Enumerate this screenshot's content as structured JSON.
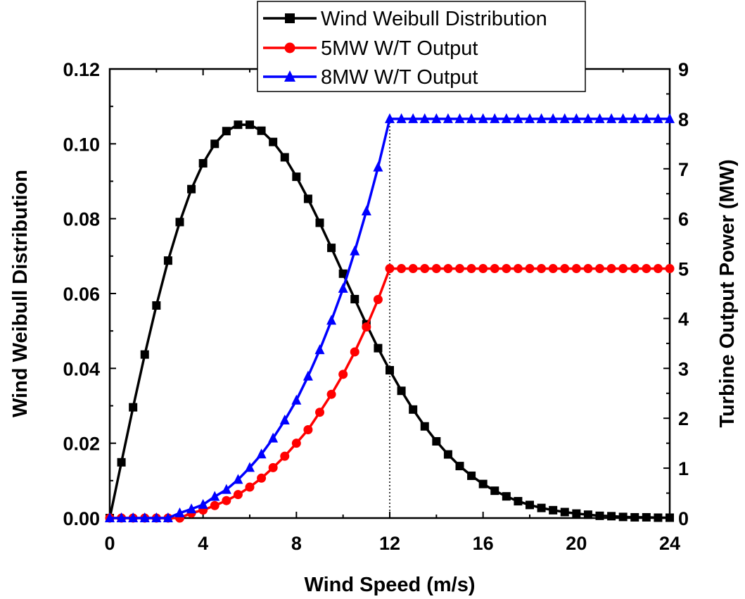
{
  "chart_data": {
    "type": "line",
    "xlabel": "Wind Speed (m/s)",
    "ylabel_left": "Wind Weibull Distribution",
    "ylabel_right": "Turbine Output Power (MW)",
    "xlim": [
      0,
      24
    ],
    "ylim_left": [
      0,
      0.12
    ],
    "ylim_right": [
      0,
      9
    ],
    "x_ticks": [
      "0",
      "4",
      "8",
      "12",
      "16",
      "20",
      "24"
    ],
    "y_left_ticks": [
      "0.00",
      "0.02",
      "0.04",
      "0.06",
      "0.08",
      "0.10",
      "0.12"
    ],
    "y_right_ticks": [
      "0",
      "1",
      "2",
      "3",
      "4",
      "5",
      "6",
      "7",
      "8",
      "9"
    ],
    "rated_speed_line": 12,
    "legend_position": "top-center",
    "x": [
      0,
      0.5,
      1,
      1.5,
      2,
      2.5,
      3,
      3.5,
      4,
      4.5,
      5,
      5.5,
      6,
      6.5,
      7,
      7.5,
      8,
      8.5,
      9,
      9.5,
      10,
      10.5,
      11,
      11.5,
      12,
      12.5,
      13,
      13.5,
      14,
      14.5,
      15,
      15.5,
      16,
      16.5,
      17,
      17.5,
      18,
      18.5,
      19,
      19.5,
      20,
      20.5,
      21,
      21.5,
      22,
      22.5,
      23,
      23.5,
      24
    ],
    "series": [
      {
        "name": "Wind Weibull Distribution",
        "axis": "left",
        "color": "#000000",
        "marker": "square",
        "values": [
          0,
          0.0149,
          0.0296,
          0.0437,
          0.0568,
          0.0688,
          0.0791,
          0.0879,
          0.0948,
          0.1,
          0.1034,
          0.1051,
          0.1051,
          0.1035,
          0.1005,
          0.0964,
          0.0912,
          0.0853,
          0.0789,
          0.0722,
          0.0653,
          0.0585,
          0.0518,
          0.0454,
          0.0395,
          0.034,
          0.029,
          0.0245,
          0.0205,
          0.017,
          0.0139,
          0.0113,
          0.0091,
          0.0073,
          0.0058,
          0.0045,
          0.0035,
          0.0027,
          0.0021,
          0.0016,
          0.0012,
          0.0009,
          0.0006,
          0.0005,
          0.0003,
          0.0002,
          0.0002,
          0.0001,
          0.0001
        ]
      },
      {
        "name": "5MW W/T Output",
        "axis": "right",
        "color": "#ff0000",
        "marker": "circle",
        "values": [
          0,
          0,
          0,
          0,
          0,
          0,
          0,
          0.1,
          0.16,
          0.25,
          0.35,
          0.47,
          0.62,
          0.8,
          1.01,
          1.24,
          1.5,
          1.77,
          2.12,
          2.48,
          2.88,
          3.33,
          3.83,
          4.38,
          5,
          5,
          5,
          5,
          5,
          5,
          5,
          5,
          5,
          5,
          5,
          5,
          5,
          5,
          5,
          5,
          5,
          5,
          5,
          5,
          5,
          5,
          5,
          5,
          5
        ]
      },
      {
        "name": "8MW W/T Output",
        "axis": "right",
        "color": "#0000ff",
        "marker": "triangle",
        "values": [
          0,
          0,
          0,
          0,
          0,
          0,
          0.1,
          0.18,
          0.27,
          0.43,
          0.57,
          0.77,
          1.01,
          1.28,
          1.6,
          1.96,
          2.36,
          2.84,
          3.37,
          3.96,
          4.6,
          5.35,
          6.15,
          7.03,
          8,
          8,
          8,
          8,
          8,
          8,
          8,
          8,
          8,
          8,
          8,
          8,
          8,
          8,
          8,
          8,
          8,
          8,
          8,
          8,
          8,
          8,
          8,
          8,
          8
        ]
      }
    ]
  }
}
